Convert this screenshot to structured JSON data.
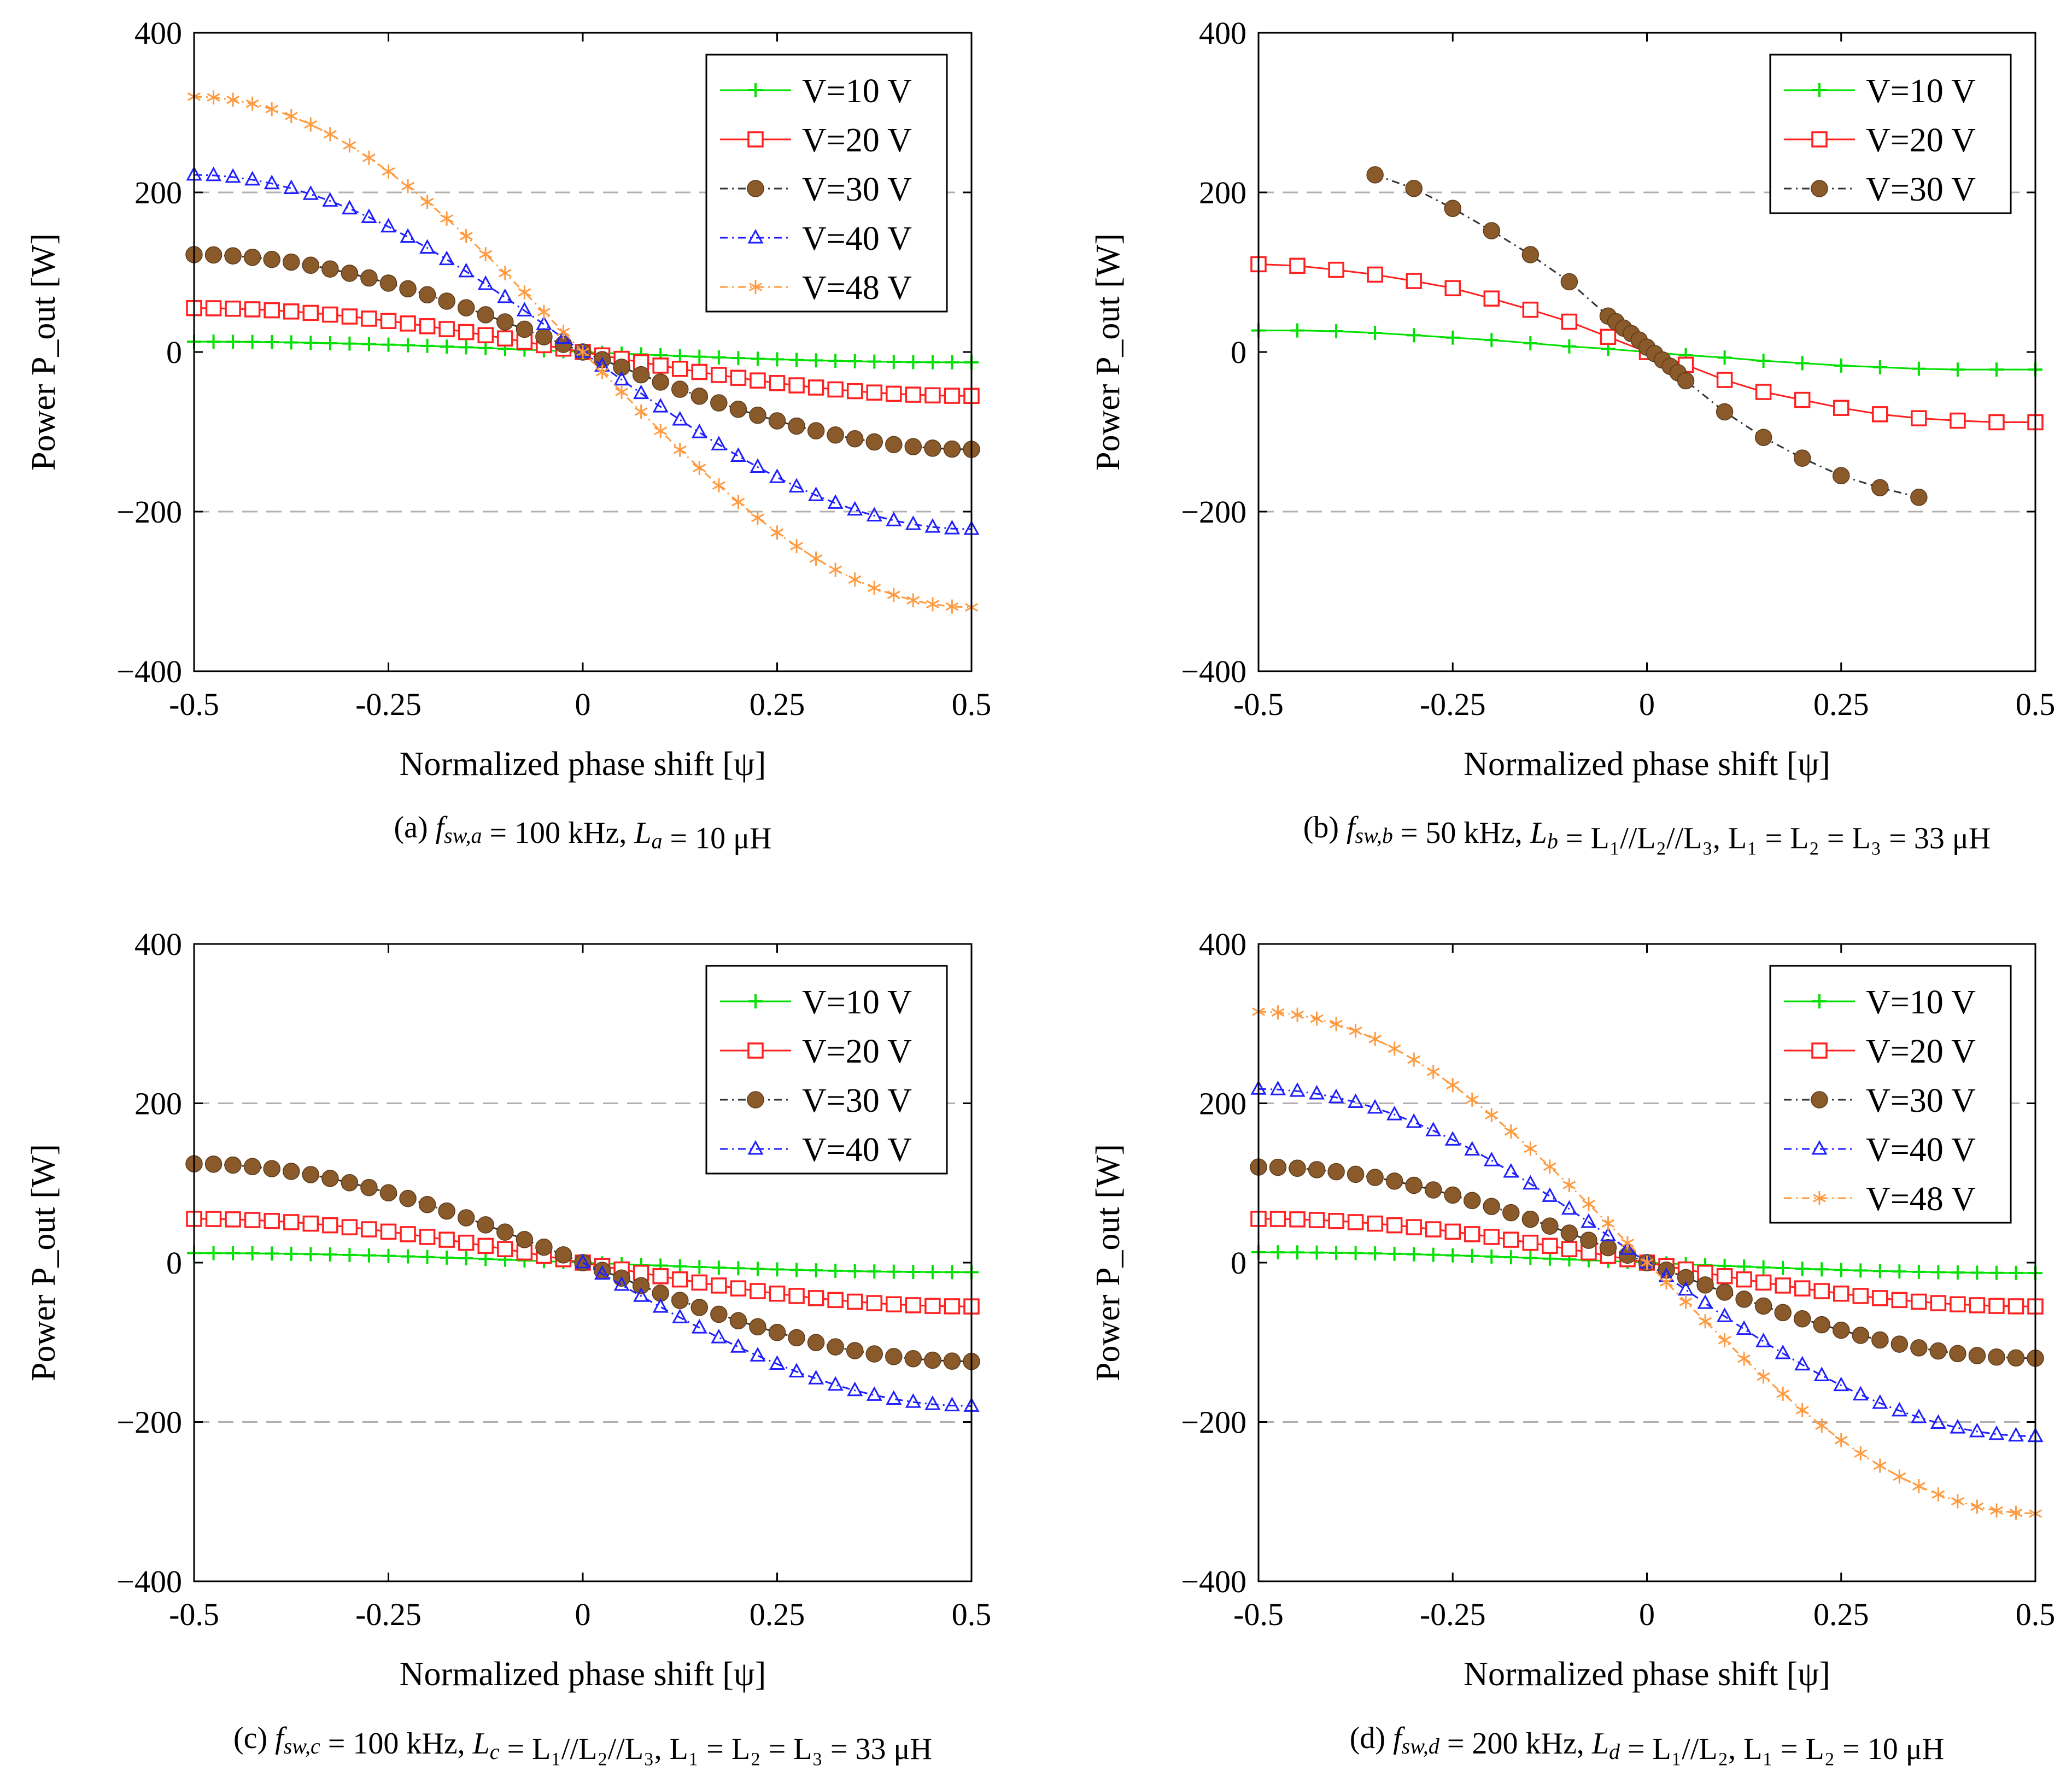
{
  "chart_data": [
    {
      "type": "line",
      "panel": "a",
      "caption": "(a) f_sw,a = 100 kHz, L_a = 10 μH",
      "xlabel": "Normalized phase shift [ψ]",
      "ylabel": "Power P_out [W]",
      "xlim": [
        -0.5,
        0.5
      ],
      "ylim": [
        -400,
        400
      ],
      "xticks": [
        "-0.5",
        "-0.25",
        "0",
        "0.25",
        "0.5"
      ],
      "yticks": [
        "400",
        "200",
        "0",
        "−200",
        "−400"
      ],
      "grid": "dashed horizontal at ±200",
      "legend_position": "top-right",
      "series": [
        {
          "name": "V=10 V",
          "color": "#00e000",
          "marker": "plus",
          "amplitude": 13,
          "n": 41
        },
        {
          "name": "V=20 V",
          "color": "#ff2020",
          "marker": "square",
          "amplitude": 55,
          "n": 41
        },
        {
          "name": "V=30 V",
          "color": "#8b5a2b",
          "marker": "circle",
          "amplitude": 122,
          "n": 41
        },
        {
          "name": "V=40 V",
          "color": "#2020ff",
          "marker": "triangle",
          "amplitude": 222,
          "n": 41
        },
        {
          "name": "V=48 V",
          "color": "#ff9a40",
          "marker": "star",
          "amplitude": 320,
          "n": 41
        }
      ]
    },
    {
      "type": "line",
      "panel": "b",
      "caption": "(b) f_sw,b = 50 kHz, L_b = L1//L2//L3, L1 = L2 = L3 = 33 μH",
      "xlabel": "Normalized phase shift [ψ]",
      "ylabel": "Power P_out [W]",
      "xlim": [
        -0.5,
        0.5
      ],
      "ylim": [
        -400,
        400
      ],
      "xticks": [
        "-0.5",
        "-0.25",
        "0",
        "0.25",
        "0.5"
      ],
      "yticks": [
        "400",
        "200",
        "0",
        "−200",
        "−400"
      ],
      "grid": "dashed horizontal at ±200",
      "legend_position": "top-right",
      "series": [
        {
          "name": "V=10 V",
          "color": "#00e000",
          "marker": "plus",
          "x": [
            -0.5,
            -0.45,
            -0.4,
            -0.35,
            -0.3,
            -0.25,
            -0.2,
            -0.15,
            -0.1,
            -0.05,
            0,
            0.05,
            0.1,
            0.15,
            0.2,
            0.25,
            0.3,
            0.35,
            0.4,
            0.45,
            0.5
          ],
          "y": [
            27,
            27,
            26,
            24,
            21,
            18,
            15,
            11,
            7,
            4,
            0,
            -4,
            -7,
            -11,
            -14,
            -17,
            -19,
            -21,
            -22,
            -22,
            -22
          ]
        },
        {
          "name": "V=20 V",
          "color": "#ff2020",
          "marker": "square",
          "x": [
            -0.5,
            -0.45,
            -0.4,
            -0.35,
            -0.3,
            -0.25,
            -0.2,
            -0.15,
            -0.1,
            -0.05,
            0,
            0.05,
            0.1,
            0.15,
            0.2,
            0.25,
            0.3,
            0.35,
            0.4,
            0.45,
            0.5
          ],
          "y": [
            110,
            108,
            103,
            97,
            89,
            80,
            67,
            53,
            38,
            19,
            0,
            -16,
            -35,
            -50,
            -60,
            -70,
            -78,
            -83,
            -86,
            -88,
            -88
          ]
        },
        {
          "name": "V=30 V",
          "color": "#8b5a2b",
          "marker": "circle",
          "x": [
            -0.35,
            -0.3,
            -0.25,
            -0.2,
            -0.15,
            -0.1,
            -0.05,
            -0.04,
            -0.03,
            -0.02,
            -0.01,
            0,
            0.01,
            0.02,
            0.03,
            0.04,
            0.05,
            0.1,
            0.15,
            0.2,
            0.25,
            0.3,
            0.35
          ],
          "y": [
            222,
            205,
            180,
            152,
            122,
            88,
            45,
            38,
            30,
            23,
            15,
            6,
            -2,
            -10,
            -18,
            -26,
            -36,
            -75,
            -107,
            -133,
            -155,
            -170,
            -182
          ]
        }
      ]
    },
    {
      "type": "line",
      "panel": "c",
      "caption": "(c) f_sw,c = 100 kHz, L_c = L1//L2//L3, L1 = L2 = L3 = 33 μH",
      "xlabel": "Normalized phase shift [ψ]",
      "ylabel": "Power P_out [W]",
      "xlim": [
        -0.5,
        0.5
      ],
      "ylim": [
        -400,
        400
      ],
      "xticks": [
        "-0.5",
        "-0.25",
        "0",
        "0.25",
        "0.5"
      ],
      "yticks": [
        "400",
        "200",
        "0",
        "−200",
        "−400"
      ],
      "grid": "dashed horizontal at ±200",
      "legend_position": "top-right",
      "series": [
        {
          "name": "V=10 V",
          "color": "#00e000",
          "marker": "plus",
          "amplitude": 12,
          "n": 41
        },
        {
          "name": "V=20 V",
          "color": "#ff2020",
          "marker": "square",
          "amplitude": 55,
          "n": 41
        },
        {
          "name": "V=30 V",
          "color": "#8b5a2b",
          "marker": "circle",
          "amplitude": 124,
          "n": 41
        },
        {
          "name": "V=40 V",
          "color": "#2020ff",
          "marker": "triangle",
          "amplitude": 180,
          "n": 41,
          "x_start": 0
        }
      ]
    },
    {
      "type": "line",
      "panel": "d",
      "caption": "(d) f_sw,d = 200 kHz, L_d = L1//L2, L1 = L2 = 10 μH",
      "xlabel": "Normalized phase shift [ψ]",
      "ylabel": "Power P_out [W]",
      "xlim": [
        -0.5,
        0.5
      ],
      "ylim": [
        -400,
        400
      ],
      "xticks": [
        "-0.5",
        "-0.25",
        "0",
        "0.25",
        "0.5"
      ],
      "yticks": [
        "400",
        "200",
        "0",
        "−200",
        "−400"
      ],
      "grid": "dashed horizontal at ±200",
      "legend_position": "top-right",
      "series": [
        {
          "name": "V=10 V",
          "color": "#00e000",
          "marker": "plus",
          "amplitude": 13,
          "n": 41
        },
        {
          "name": "V=20 V",
          "color": "#ff2020",
          "marker": "square",
          "amplitude": 55,
          "n": 41
        },
        {
          "name": "V=30 V",
          "color": "#8b5a2b",
          "marker": "circle",
          "amplitude": 120,
          "n": 41
        },
        {
          "name": "V=40 V",
          "color": "#2020ff",
          "marker": "triangle",
          "amplitude": 218,
          "n": 41
        },
        {
          "name": "V=48 V",
          "color": "#ff9a40",
          "marker": "star",
          "amplitude": 315,
          "n": 41
        }
      ]
    }
  ],
  "captions": {
    "a": {
      "label": "(a)",
      "f": "f",
      "f_sub": "sw,a",
      "f_val": " = 100 kHz, ",
      "L": "L",
      "L_sub": "a",
      "rest": " = 10 μH"
    },
    "b": {
      "label": "(b)",
      "f": "f",
      "f_sub": "sw,b",
      "f_val": " = 50 kHz, ",
      "L": "L",
      "L_sub": "b",
      "rest": " = L₁//L₂//L₃, L₁ = L₂ = L₃ = 33 μH"
    },
    "c": {
      "label": "(c)",
      "f": "f",
      "f_sub": "sw,c",
      "f_val": " = 100 kHz, ",
      "L": "L",
      "L_sub": "c",
      "rest": " = L₁//L₂//L₃, L₁ = L₂ = L₃ = 33 μH"
    },
    "d": {
      "label": "(d)",
      "f": "f",
      "f_sub": "sw,d",
      "f_val": " = 200 kHz, ",
      "L": "L",
      "L_sub": "d",
      "rest": " = L₁//L₂, L₁ = L₂ = 10 μH"
    }
  }
}
